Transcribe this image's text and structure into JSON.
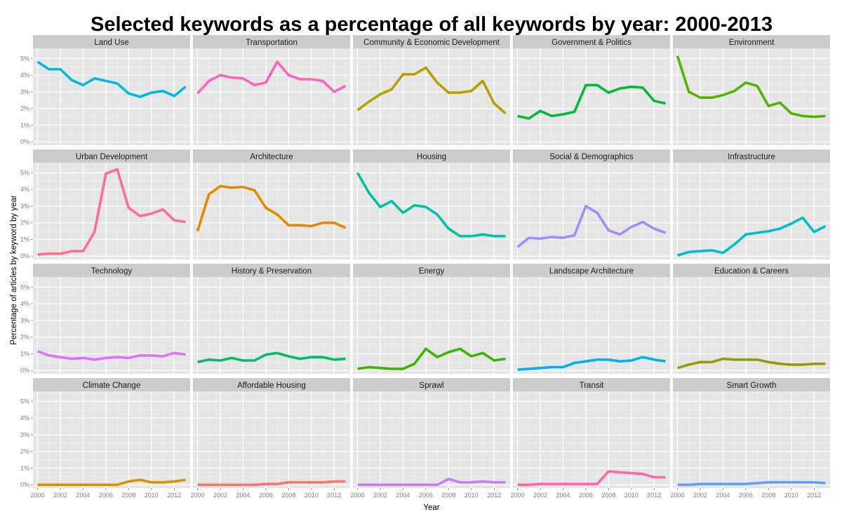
{
  "chart_data": {
    "type": "line",
    "title": "Selected keywords as a percentage of all keywords by year: 2000-2013",
    "xlabel": "Year",
    "ylabel": "Percentage of articles by keyword by year",
    "x": [
      2000,
      2001,
      2002,
      2003,
      2004,
      2005,
      2006,
      2007,
      2008,
      2009,
      2010,
      2011,
      2012,
      2013
    ],
    "x_ticks": [
      2000,
      2002,
      2004,
      2006,
      2008,
      2010,
      2012
    ],
    "x_tick_labels": [
      "2000",
      "2002",
      "2004",
      "2006",
      "2008",
      "2010",
      "2012"
    ],
    "y_ticks": [
      0,
      1,
      2,
      3,
      4,
      5
    ],
    "y_tick_labels": [
      "0%",
      "1%",
      "2%",
      "3%",
      "4%",
      "5%"
    ],
    "ylim": [
      -0.2,
      5.6
    ],
    "xlim": [
      1999.6,
      2013.4
    ],
    "grid": true,
    "facets": {
      "rows": 4,
      "cols": 5
    },
    "series": [
      {
        "name": "Land Use",
        "color": "#00BAE0",
        "values": [
          4.8,
          4.35,
          4.35,
          3.7,
          3.4,
          3.8,
          3.65,
          3.5,
          2.9,
          2.7,
          2.95,
          3.05,
          2.75,
          3.3
        ]
      },
      {
        "name": "Transportation",
        "color": "#FF62BC",
        "values": [
          2.9,
          3.65,
          4.0,
          3.85,
          3.8,
          3.4,
          3.55,
          4.8,
          4.0,
          3.75,
          3.75,
          3.65,
          3.0,
          3.35
        ]
      },
      {
        "name": "Community & Economic Development",
        "color": "#B79F00",
        "values": [
          1.9,
          2.4,
          2.85,
          3.15,
          4.05,
          4.05,
          4.45,
          3.55,
          2.95,
          2.95,
          3.05,
          3.65,
          2.3,
          1.7
        ]
      },
      {
        "name": "Government & Politics",
        "color": "#00BA38",
        "values": [
          1.55,
          1.4,
          1.85,
          1.55,
          1.65,
          1.8,
          3.4,
          3.4,
          2.95,
          3.2,
          3.3,
          3.25,
          2.45,
          2.3
        ]
      },
      {
        "name": "Environment",
        "color": "#53B400",
        "values": [
          5.15,
          3.0,
          2.65,
          2.65,
          2.8,
          3.05,
          3.55,
          3.35,
          2.15,
          2.35,
          1.7,
          1.55,
          1.5,
          1.55
        ]
      },
      {
        "name": "Urban Development",
        "color": "#FF6C91",
        "values": [
          0.1,
          0.15,
          0.15,
          0.3,
          0.3,
          1.45,
          4.95,
          5.2,
          2.9,
          2.4,
          2.55,
          2.8,
          2.15,
          2.05
        ]
      },
      {
        "name": "Architecture",
        "color": "#E58700",
        "values": [
          1.5,
          3.7,
          4.2,
          4.1,
          4.15,
          3.95,
          2.9,
          2.5,
          1.85,
          1.85,
          1.8,
          2.0,
          2.0,
          1.7
        ]
      },
      {
        "name": "Housing",
        "color": "#00C1A3",
        "values": [
          5.0,
          3.8,
          2.95,
          3.3,
          2.6,
          3.05,
          2.95,
          2.5,
          1.65,
          1.2,
          1.2,
          1.3,
          1.2,
          1.2
        ]
      },
      {
        "name": "Social & Demographics",
        "color": "#A58AFF",
        "values": [
          0.55,
          1.1,
          1.05,
          1.15,
          1.1,
          1.25,
          3.0,
          2.6,
          1.55,
          1.3,
          1.75,
          2.05,
          1.65,
          1.4
        ]
      },
      {
        "name": "Infrastructure",
        "color": "#00BFC4",
        "values": [
          0.05,
          0.25,
          0.3,
          0.35,
          0.2,
          0.7,
          1.3,
          1.4,
          1.5,
          1.65,
          1.95,
          2.3,
          1.45,
          1.8
        ]
      },
      {
        "name": "Technology",
        "color": "#DC71FA",
        "values": [
          1.15,
          0.9,
          0.8,
          0.7,
          0.75,
          0.65,
          0.75,
          0.8,
          0.75,
          0.9,
          0.9,
          0.85,
          1.05,
          0.95
        ]
      },
      {
        "name": "History & Preservation",
        "color": "#00BE67",
        "values": [
          0.5,
          0.65,
          0.6,
          0.75,
          0.6,
          0.6,
          0.95,
          1.05,
          0.85,
          0.7,
          0.8,
          0.8,
          0.65,
          0.7
        ]
      },
      {
        "name": "Energy",
        "color": "#39B600",
        "values": [
          0.1,
          0.2,
          0.15,
          0.1,
          0.1,
          0.4,
          1.3,
          0.8,
          1.1,
          1.3,
          0.85,
          1.05,
          0.6,
          0.7
        ]
      },
      {
        "name": "Landscape Architecture",
        "color": "#00B0F6",
        "values": [
          0.05,
          0.1,
          0.15,
          0.2,
          0.2,
          0.45,
          0.55,
          0.65,
          0.65,
          0.55,
          0.6,
          0.8,
          0.65,
          0.55
        ]
      },
      {
        "name": "Education & Careers",
        "color": "#9A9A00",
        "values": [
          0.15,
          0.35,
          0.5,
          0.5,
          0.7,
          0.65,
          0.65,
          0.65,
          0.5,
          0.4,
          0.35,
          0.35,
          0.4,
          0.4
        ]
      },
      {
        "name": "Climate Change",
        "color": "#D89000",
        "values": [
          0.0,
          0.0,
          0.0,
          0.0,
          0.0,
          0.0,
          0.0,
          0.0,
          0.2,
          0.3,
          0.15,
          0.15,
          0.2,
          0.3
        ]
      },
      {
        "name": "Affordable Housing",
        "color": "#F8766D",
        "values": [
          0.0,
          0.0,
          0.0,
          0.0,
          0.0,
          0.0,
          0.05,
          0.05,
          0.15,
          0.15,
          0.15,
          0.15,
          0.2,
          0.2
        ]
      },
      {
        "name": "Sprawl",
        "color": "#C77CFF",
        "values": [
          0.0,
          0.0,
          0.0,
          0.0,
          0.0,
          0.0,
          0.0,
          0.0,
          0.35,
          0.15,
          0.15,
          0.2,
          0.15,
          0.15
        ]
      },
      {
        "name": "Transit",
        "color": "#FF64B0",
        "values": [
          0.0,
          0.0,
          0.05,
          0.05,
          0.05,
          0.05,
          0.05,
          0.05,
          0.8,
          0.75,
          0.7,
          0.65,
          0.45,
          0.45
        ]
      },
      {
        "name": "Smart Growth",
        "color": "#619CFF",
        "values": [
          0.0,
          0.0,
          0.05,
          0.05,
          0.05,
          0.05,
          0.05,
          0.1,
          0.15,
          0.15,
          0.15,
          0.15,
          0.15,
          0.1
        ]
      }
    ]
  }
}
